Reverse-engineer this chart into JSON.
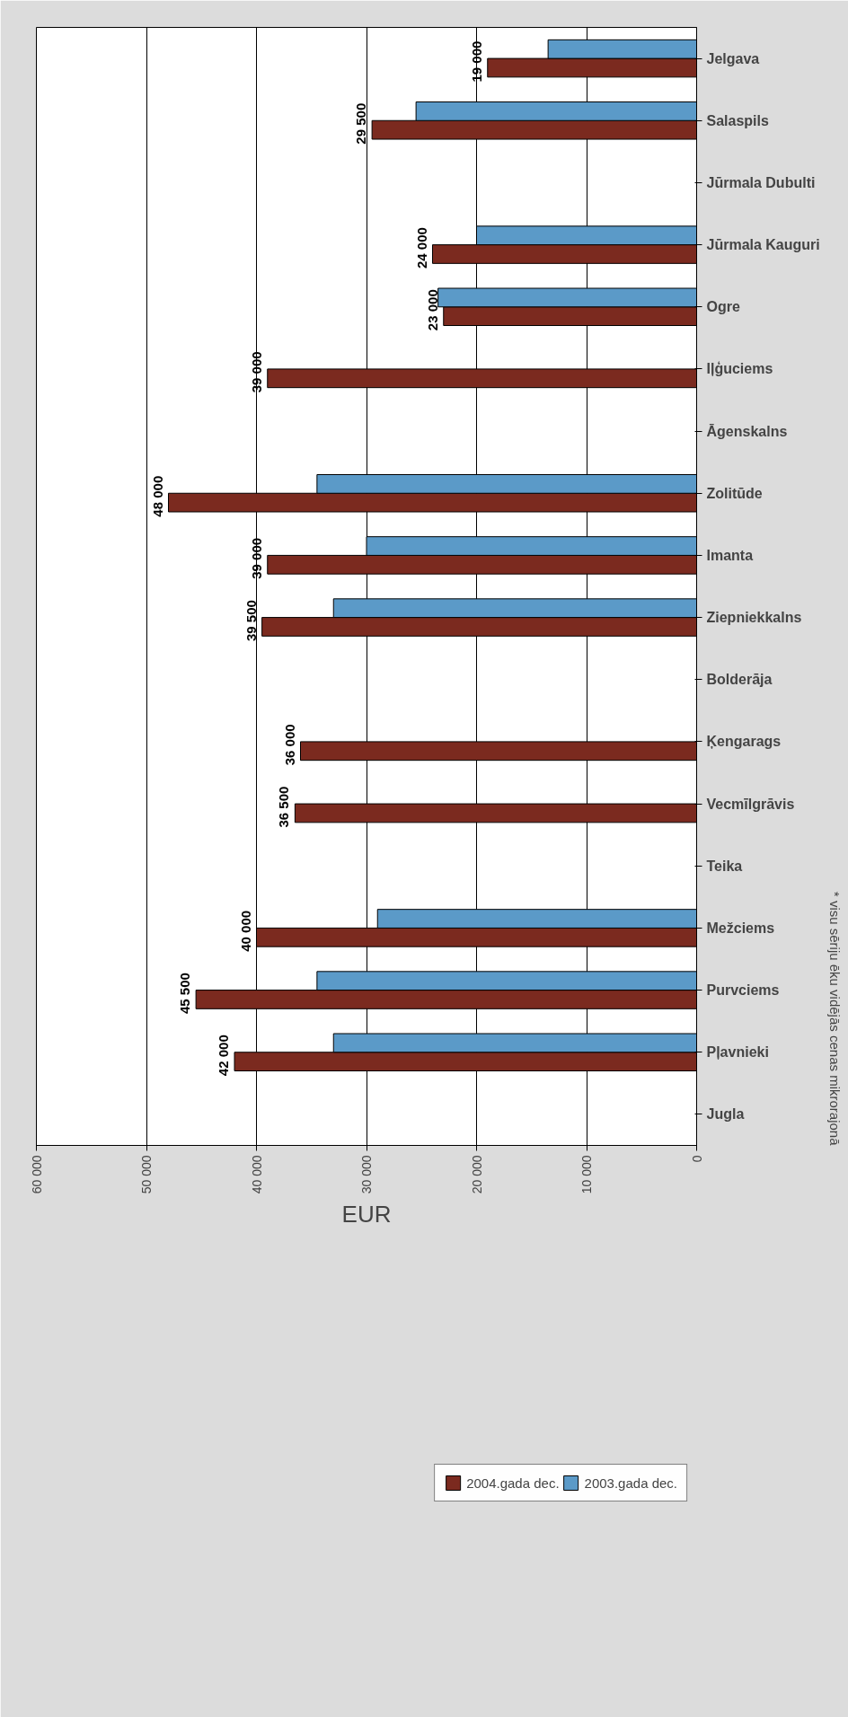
{
  "chart_data": {
    "type": "bar",
    "orientation": "horizontal",
    "categories": [
      "Jelgava",
      "Salaspils",
      "Jūrmala Dubulti",
      "Jūrmala Kauguri",
      "Ogre",
      "Iļģuciems",
      "Āgenskalns",
      "Zolitūde",
      "Imanta",
      "Ziepniekkalns",
      "Bolderāja",
      "Ķengarags",
      "Vecmīlgrāvis",
      "Teika",
      "Mežciems",
      "Purvciems",
      "Pļavnieki",
      "Jugla"
    ],
    "series": [
      {
        "name": "2004.gada dec.",
        "color": "#7b2a1f",
        "values": [
          19000,
          29500,
          null,
          24000,
          23000,
          39000,
          null,
          48000,
          39000,
          39500,
          null,
          36000,
          36500,
          null,
          40000,
          45500,
          42000,
          null
        ],
        "value_labels": [
          "19 000",
          "29 500",
          null,
          "24 000",
          "23 000",
          "39 000",
          null,
          "48 000",
          "39 000",
          "39 500",
          null,
          "36 000",
          "36 500",
          null,
          "40 000",
          "45 500",
          "42 000",
          null
        ]
      },
      {
        "name": "2003.gada dec.",
        "color": "#5b9ac8",
        "values": [
          13500,
          25500,
          null,
          20000,
          23500,
          null,
          null,
          34500,
          30000,
          33000,
          null,
          null,
          null,
          null,
          29000,
          34500,
          33000,
          null
        ]
      }
    ],
    "xlabel": "EUR",
    "xlim": [
      60000,
      0
    ],
    "xticks": [
      {
        "value": 0,
        "label": "0"
      },
      {
        "value": 10000,
        "label": "10 000"
      },
      {
        "value": 20000,
        "label": "20 000"
      },
      {
        "value": 30000,
        "label": "30 000"
      },
      {
        "value": 40000,
        "label": "40 000"
      },
      {
        "value": 50000,
        "label": "50 000"
      },
      {
        "value": 60000,
        "label": "60 000"
      }
    ],
    "grid": "x",
    "legend": "bottom",
    "annotations": [
      "* visu sēriju ēku vidējās cenas mikrorajonā"
    ]
  }
}
